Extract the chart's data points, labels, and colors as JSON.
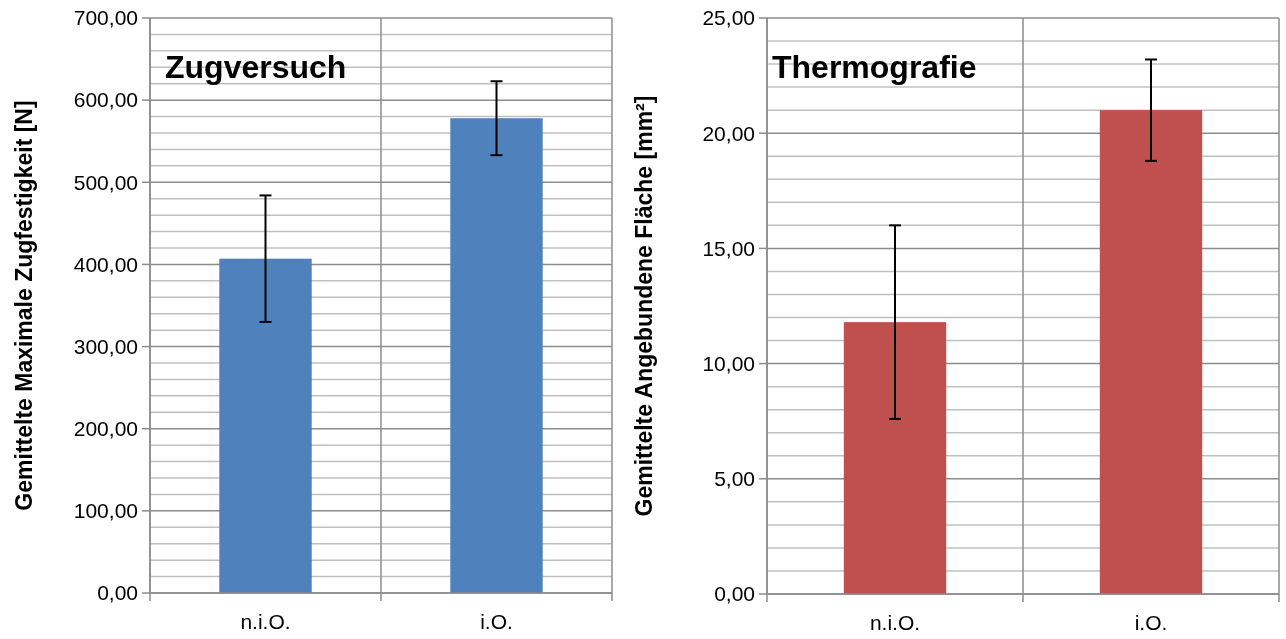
{
  "chart_data": [
    {
      "type": "bar",
      "title": "Zugversuch",
      "ylabel": "Gemittelte  Maximale Zugfestigkeit [N]",
      "categories": [
        "n.i.O.",
        "i.O."
      ],
      "values": [
        407,
        578
      ],
      "errors": [
        77,
        45
      ],
      "color": "#4f81bd",
      "ylim": [
        0,
        700
      ],
      "yticks": [
        {
          "value": 0,
          "label": "0,00"
        },
        {
          "value": 100,
          "label": "100,00"
        },
        {
          "value": 200,
          "label": "200,00"
        },
        {
          "value": 300,
          "label": "300,00"
        },
        {
          "value": 400,
          "label": "400,00"
        },
        {
          "value": 500,
          "label": "500,00"
        },
        {
          "value": 600,
          "label": "600,00"
        },
        {
          "value": 700,
          "label": "700,00"
        }
      ],
      "grid": true
    },
    {
      "type": "bar",
      "title": "Thermografie",
      "ylabel": "Gemittelte Angebundene Fläche [mm²]",
      "categories": [
        "n.i.O.",
        "i.O."
      ],
      "values": [
        11.8,
        21.0
      ],
      "errors": [
        4.2,
        2.2
      ],
      "color": "#c0504d",
      "ylim": [
        0,
        25
      ],
      "yticks": [
        {
          "value": 0,
          "label": "0,00"
        },
        {
          "value": 5,
          "label": "5,00"
        },
        {
          "value": 10,
          "label": "10,00"
        },
        {
          "value": 15,
          "label": "15,00"
        },
        {
          "value": 20,
          "label": "20,00"
        },
        {
          "value": 25,
          "label": "25,00"
        }
      ],
      "grid": true
    }
  ]
}
